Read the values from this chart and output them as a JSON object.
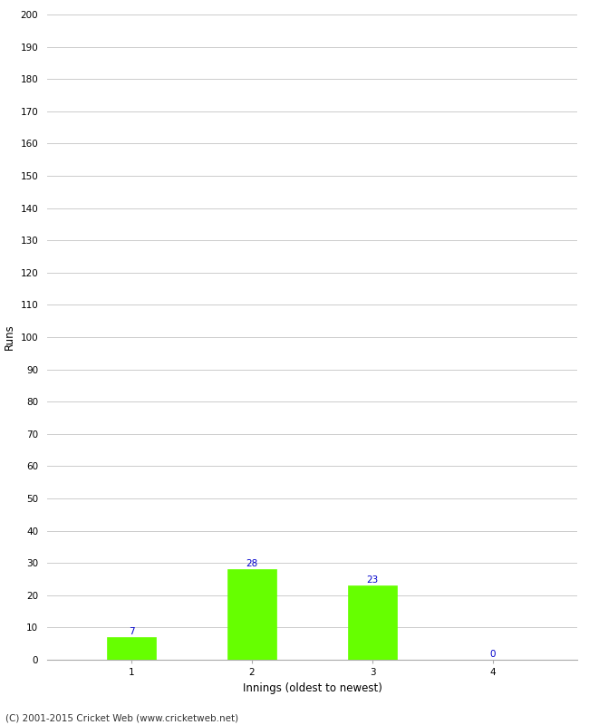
{
  "categories": [
    "1",
    "2",
    "3",
    "4"
  ],
  "values": [
    7,
    28,
    23,
    0
  ],
  "bar_color": "#66ff00",
  "bar_edge_color": "#66ff00",
  "value_label_color": "#0000cc",
  "xlabel": "Innings (oldest to newest)",
  "ylabel": "Runs",
  "ylim": [
    0,
    200
  ],
  "yticks": [
    0,
    10,
    20,
    30,
    40,
    50,
    60,
    70,
    80,
    90,
    100,
    110,
    120,
    130,
    140,
    150,
    160,
    170,
    180,
    190,
    200
  ],
  "background_color": "#ffffff",
  "grid_color": "#cccccc",
  "footer_text": "(C) 2001-2015 Cricket Web (www.cricketweb.net)",
  "value_fontsize": 7.5,
  "label_fontsize": 8.5,
  "tick_fontsize": 7.5,
  "footer_fontsize": 7.5,
  "bar_width": 0.4
}
